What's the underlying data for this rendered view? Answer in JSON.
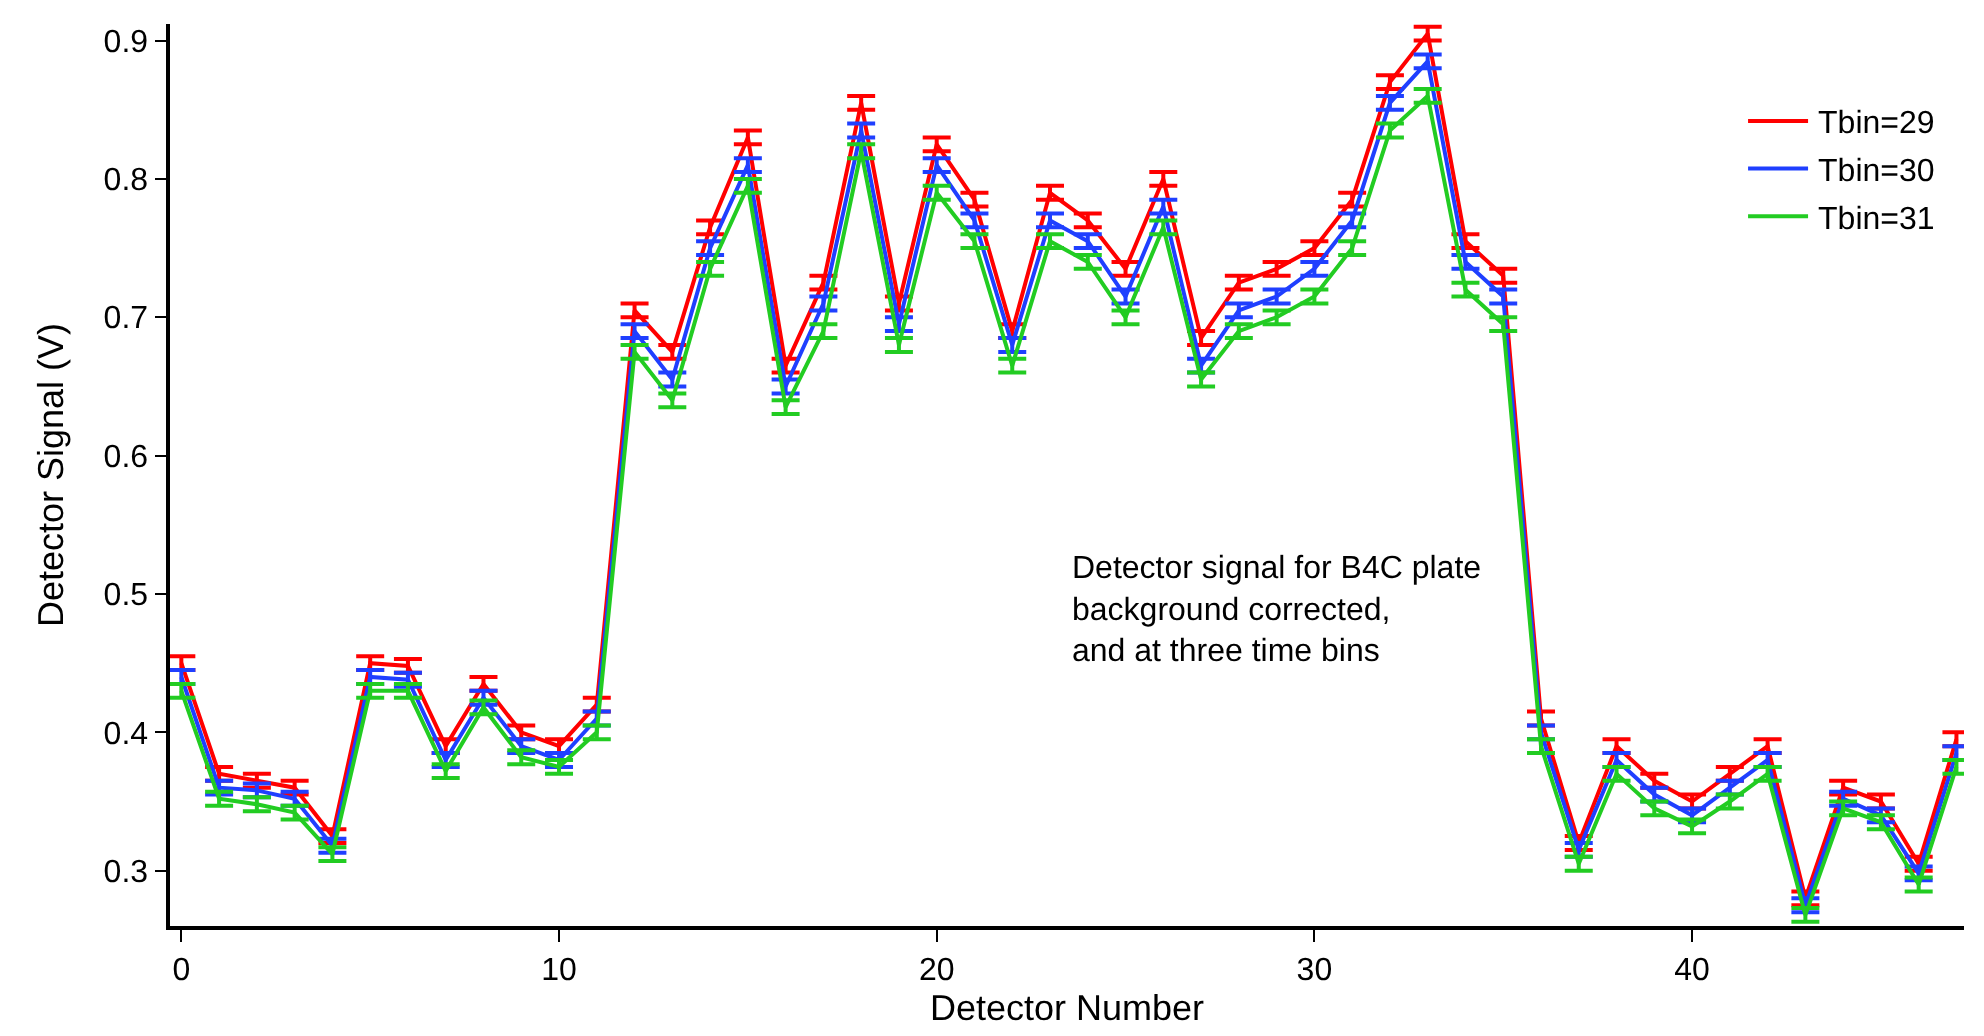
{
  "chart_data": {
    "type": "line",
    "xlabel": "Detector Number",
    "ylabel": "Detector Signal (V)",
    "x": [
      0,
      1,
      2,
      3,
      4,
      5,
      6,
      7,
      8,
      9,
      10,
      11,
      12,
      13,
      14,
      15,
      16,
      17,
      18,
      19,
      20,
      21,
      22,
      23,
      24,
      25,
      26,
      27,
      28,
      29,
      30,
      31,
      32,
      33,
      34,
      35,
      36,
      37,
      38,
      39,
      40,
      41,
      42,
      43,
      44,
      45,
      46,
      47
    ],
    "series": [
      {
        "name": "Tbin=29",
        "color": "#ff0000",
        "values": [
          0.45,
          0.37,
          0.365,
          0.36,
          0.325,
          0.45,
          0.448,
          0.39,
          0.435,
          0.4,
          0.39,
          0.42,
          0.705,
          0.675,
          0.765,
          0.83,
          0.665,
          0.725,
          0.855,
          0.71,
          0.825,
          0.785,
          0.69,
          0.79,
          0.77,
          0.735,
          0.8,
          0.685,
          0.725,
          0.735,
          0.75,
          0.785,
          0.87,
          0.905,
          0.755,
          0.73,
          0.41,
          0.32,
          0.39,
          0.365,
          0.35,
          0.37,
          0.39,
          0.28,
          0.36,
          0.35,
          0.305,
          0.395
        ],
        "errors": [
          0.005,
          0.005,
          0.005,
          0.005,
          0.005,
          0.005,
          0.005,
          0.005,
          0.005,
          0.005,
          0.005,
          0.005,
          0.005,
          0.005,
          0.005,
          0.005,
          0.005,
          0.005,
          0.005,
          0.005,
          0.005,
          0.005,
          0.005,
          0.005,
          0.005,
          0.005,
          0.005,
          0.005,
          0.005,
          0.005,
          0.005,
          0.005,
          0.005,
          0.005,
          0.005,
          0.005,
          0.005,
          0.005,
          0.005,
          0.005,
          0.005,
          0.005,
          0.005,
          0.005,
          0.005,
          0.005,
          0.005,
          0.005
        ]
      },
      {
        "name": "Tbin=30",
        "color": "#1f3fff",
        "values": [
          0.44,
          0.36,
          0.358,
          0.352,
          0.318,
          0.44,
          0.438,
          0.38,
          0.425,
          0.39,
          0.38,
          0.41,
          0.69,
          0.655,
          0.75,
          0.81,
          0.65,
          0.71,
          0.835,
          0.695,
          0.81,
          0.77,
          0.68,
          0.77,
          0.755,
          0.715,
          0.78,
          0.665,
          0.705,
          0.715,
          0.735,
          0.77,
          0.855,
          0.885,
          0.74,
          0.715,
          0.4,
          0.315,
          0.38,
          0.355,
          0.34,
          0.36,
          0.38,
          0.275,
          0.352,
          0.34,
          0.298,
          0.385
        ],
        "errors": [
          0.005,
          0.005,
          0.005,
          0.005,
          0.005,
          0.005,
          0.005,
          0.005,
          0.005,
          0.005,
          0.005,
          0.005,
          0.005,
          0.005,
          0.005,
          0.005,
          0.005,
          0.005,
          0.005,
          0.005,
          0.005,
          0.005,
          0.005,
          0.005,
          0.005,
          0.005,
          0.005,
          0.005,
          0.005,
          0.005,
          0.005,
          0.005,
          0.005,
          0.005,
          0.005,
          0.005,
          0.005,
          0.005,
          0.005,
          0.005,
          0.005,
          0.005,
          0.005,
          0.005,
          0.005,
          0.005,
          0.005,
          0.005
        ]
      },
      {
        "name": "Tbin=31",
        "color": "#22cc22",
        "values": [
          0.43,
          0.352,
          0.348,
          0.342,
          0.312,
          0.43,
          0.43,
          0.372,
          0.418,
          0.382,
          0.375,
          0.4,
          0.675,
          0.64,
          0.735,
          0.795,
          0.635,
          0.69,
          0.82,
          0.68,
          0.79,
          0.755,
          0.665,
          0.755,
          0.74,
          0.7,
          0.765,
          0.655,
          0.69,
          0.7,
          0.715,
          0.75,
          0.835,
          0.86,
          0.72,
          0.695,
          0.39,
          0.305,
          0.37,
          0.345,
          0.332,
          0.35,
          0.37,
          0.268,
          0.345,
          0.335,
          0.29,
          0.375
        ],
        "errors": [
          0.005,
          0.005,
          0.005,
          0.005,
          0.005,
          0.005,
          0.005,
          0.005,
          0.005,
          0.005,
          0.005,
          0.005,
          0.005,
          0.005,
          0.005,
          0.005,
          0.005,
          0.005,
          0.005,
          0.005,
          0.005,
          0.005,
          0.005,
          0.005,
          0.005,
          0.005,
          0.005,
          0.005,
          0.005,
          0.005,
          0.005,
          0.005,
          0.005,
          0.005,
          0.005,
          0.005,
          0.005,
          0.005,
          0.005,
          0.005,
          0.005,
          0.005,
          0.005,
          0.005,
          0.005,
          0.005,
          0.005,
          0.005
        ]
      }
    ],
    "xlim": [
      -0.3,
      47.2
    ],
    "ylim": [
      0.26,
      0.912
    ],
    "xticks": [
      0,
      10,
      20,
      30,
      40
    ],
    "yticks": [
      0.3,
      0.4,
      0.5,
      0.6,
      0.7,
      0.8,
      0.9
    ],
    "annotations": [
      "Detector signal for B4C plate\nbackground corrected,\nand at three time bins"
    ],
    "legend": "top right",
    "marker": "none",
    "line_style": "solid"
  }
}
